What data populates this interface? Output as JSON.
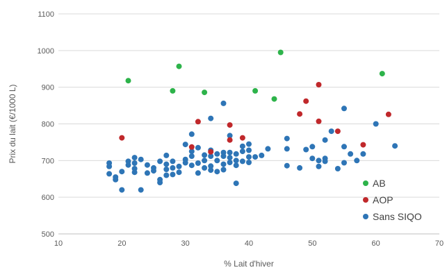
{
  "chart_data": {
    "type": "scatter",
    "xlabel": "% Lait d'hiver",
    "ylabel": "Prix du lait (€/1000 L)",
    "xlim": [
      10,
      70
    ],
    "ylim": [
      500,
      1100
    ],
    "xticks": [
      10,
      20,
      30,
      40,
      50,
      60,
      70
    ],
    "yticks": [
      500,
      600,
      700,
      800,
      900,
      1000,
      1100
    ],
    "grid": "horizontal",
    "legend_position": "bottom-right",
    "series": [
      {
        "name": "AB",
        "color": "#2db34a",
        "points": [
          [
            21,
            918
          ],
          [
            28,
            890
          ],
          [
            29,
            957
          ],
          [
            33,
            886
          ],
          [
            41,
            890
          ],
          [
            44,
            868
          ],
          [
            45,
            995
          ],
          [
            61,
            937
          ]
        ]
      },
      {
        "name": "AOP",
        "color": "#c0282b",
        "points": [
          [
            20,
            762
          ],
          [
            31,
            737
          ],
          [
            32,
            806
          ],
          [
            34,
            724
          ],
          [
            37,
            797
          ],
          [
            37,
            756
          ],
          [
            39,
            762
          ],
          [
            48,
            827
          ],
          [
            49,
            862
          ],
          [
            51,
            907
          ],
          [
            51,
            807
          ],
          [
            54,
            780
          ],
          [
            58,
            743
          ],
          [
            62,
            826
          ]
        ]
      },
      {
        "name": "Sans SIQO",
        "color": "#2e75b6",
        "points": [
          [
            18,
            693
          ],
          [
            18,
            684
          ],
          [
            18,
            664
          ],
          [
            19,
            655
          ],
          [
            19,
            648
          ],
          [
            20,
            620
          ],
          [
            20,
            670
          ],
          [
            21,
            688
          ],
          [
            21,
            698
          ],
          [
            22,
            708
          ],
          [
            22,
            693
          ],
          [
            22,
            678
          ],
          [
            22,
            668
          ],
          [
            23,
            703
          ],
          [
            23,
            620
          ],
          [
            24,
            688
          ],
          [
            24,
            666
          ],
          [
            25,
            680
          ],
          [
            25,
            672
          ],
          [
            26,
            698
          ],
          [
            26,
            648
          ],
          [
            26,
            640
          ],
          [
            27,
            714
          ],
          [
            27,
            690
          ],
          [
            27,
            676
          ],
          [
            27,
            660
          ],
          [
            28,
            698
          ],
          [
            28,
            680
          ],
          [
            28,
            662
          ],
          [
            29,
            684
          ],
          [
            29,
            668
          ],
          [
            30,
            744
          ],
          [
            30,
            703
          ],
          [
            30,
            694
          ],
          [
            31,
            772
          ],
          [
            31,
            725
          ],
          [
            31,
            712
          ],
          [
            31,
            687
          ],
          [
            32,
            735
          ],
          [
            32,
            693
          ],
          [
            32,
            666
          ],
          [
            33,
            715
          ],
          [
            33,
            700
          ],
          [
            33,
            680
          ],
          [
            34,
            815
          ],
          [
            34,
            728
          ],
          [
            34,
            712
          ],
          [
            34,
            685
          ],
          [
            34,
            674
          ],
          [
            35,
            718
          ],
          [
            35,
            700
          ],
          [
            35,
            670
          ],
          [
            36,
            856
          ],
          [
            36,
            722
          ],
          [
            36,
            712
          ],
          [
            36,
            690
          ],
          [
            36,
            675
          ],
          [
            37,
            768
          ],
          [
            37,
            722
          ],
          [
            37,
            708
          ],
          [
            37,
            695
          ],
          [
            38,
            718
          ],
          [
            38,
            700
          ],
          [
            38,
            687
          ],
          [
            38,
            638
          ],
          [
            39,
            739
          ],
          [
            39,
            725
          ],
          [
            39,
            698
          ],
          [
            40,
            745
          ],
          [
            40,
            728
          ],
          [
            40,
            710
          ],
          [
            40,
            695
          ],
          [
            41,
            710
          ],
          [
            42,
            714
          ],
          [
            43,
            732
          ],
          [
            46,
            760
          ],
          [
            46,
            732
          ],
          [
            46,
            686
          ],
          [
            48,
            680
          ],
          [
            49,
            730
          ],
          [
            50,
            738
          ],
          [
            50,
            706
          ],
          [
            51,
            700
          ],
          [
            51,
            684
          ],
          [
            52,
            756
          ],
          [
            52,
            706
          ],
          [
            52,
            698
          ],
          [
            53,
            780
          ],
          [
            54,
            678
          ],
          [
            55,
            842
          ],
          [
            55,
            738
          ],
          [
            55,
            694
          ],
          [
            56,
            718
          ],
          [
            57,
            700
          ],
          [
            58,
            718
          ],
          [
            60,
            800
          ],
          [
            63,
            740
          ]
        ]
      }
    ]
  }
}
